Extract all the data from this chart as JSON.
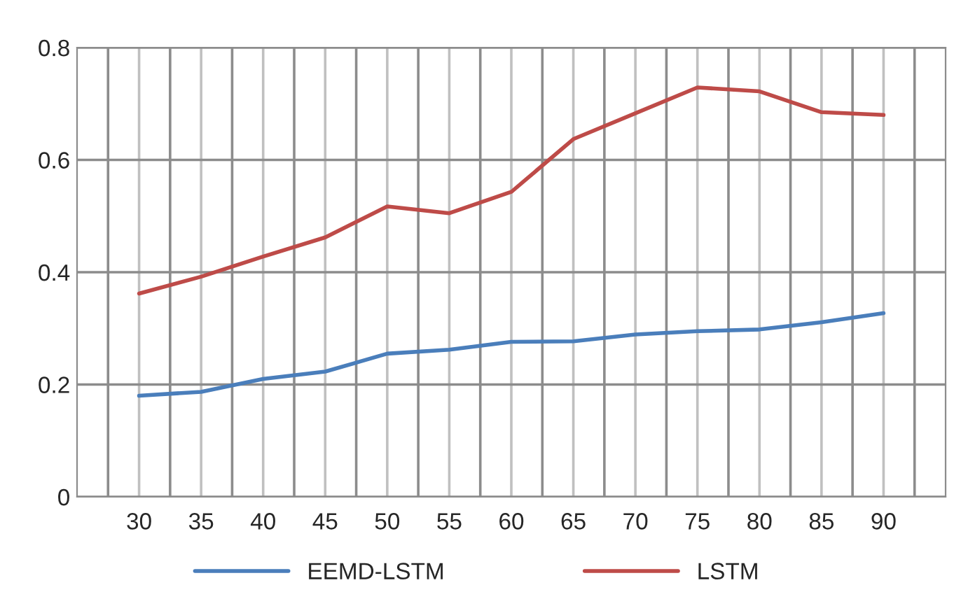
{
  "chart_data": {
    "type": "line",
    "categories": [
      "30",
      "35",
      "40",
      "45",
      "50",
      "55",
      "60",
      "65",
      "70",
      "75",
      "80",
      "85",
      "90"
    ],
    "series": [
      {
        "name": "EEMD-LSTM",
        "color": "#4a7ebb",
        "values": [
          0.18,
          0.187,
          0.21,
          0.223,
          0.255,
          0.262,
          0.276,
          0.277,
          0.289,
          0.295,
          0.298,
          0.311,
          0.327
        ]
      },
      {
        "name": "LSTM",
        "color": "#be4b48",
        "values": [
          0.362,
          0.392,
          0.428,
          0.462,
          0.517,
          0.505,
          0.543,
          0.637,
          0.683,
          0.729,
          0.722,
          0.685,
          0.68
        ]
      }
    ],
    "ylim": [
      0,
      0.8
    ],
    "yticks": [
      0,
      0.2,
      0.4,
      0.6,
      0.8
    ],
    "grid": true,
    "legend": "bottom",
    "marker": "none",
    "line_style": "solid"
  }
}
